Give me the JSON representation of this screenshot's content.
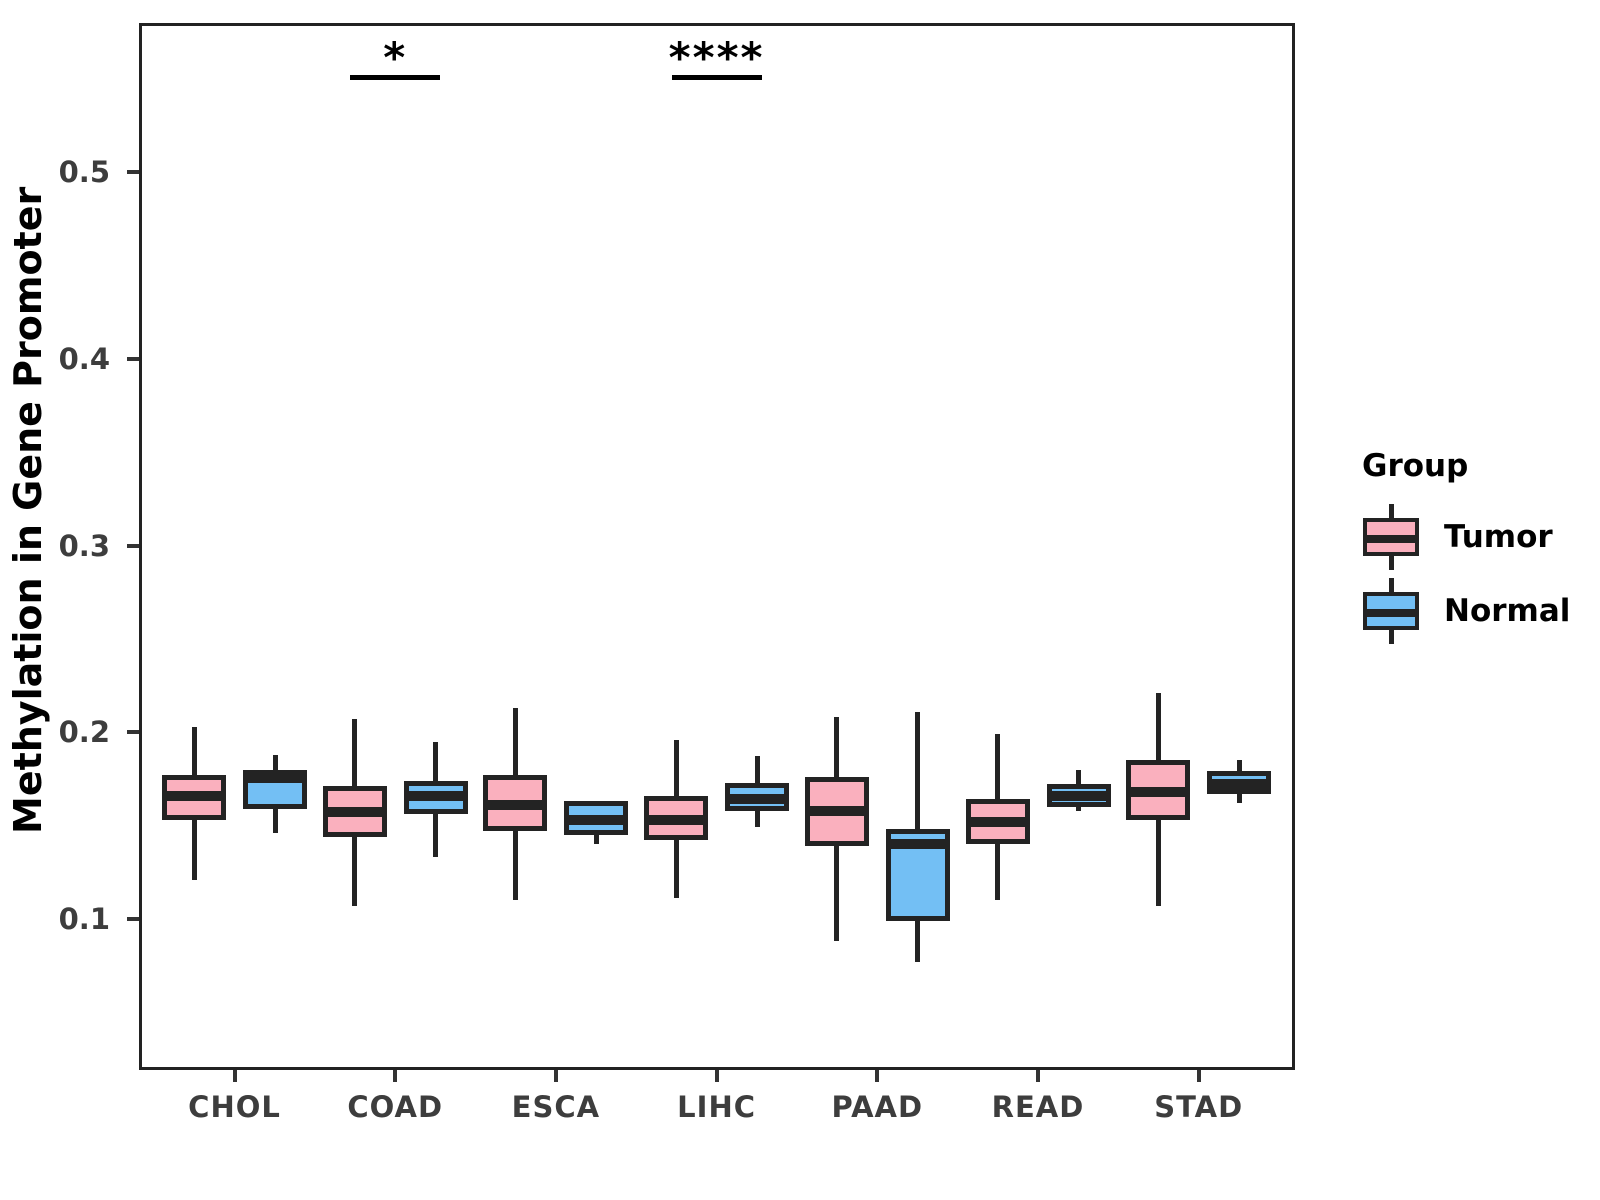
{
  "chart_data": {
    "type": "boxplot",
    "title": "",
    "xlabel": "",
    "ylabel": "Methylation in Gene Promoter",
    "categories": [
      "CHOL",
      "COAD",
      "ESCA",
      "LIHC",
      "PAAD",
      "READ",
      "STAD"
    ],
    "y_ticks": [
      0.1,
      0.2,
      0.3,
      0.4,
      0.5
    ],
    "ylim": [
      0.019,
      0.58
    ],
    "grid": "off",
    "legend": {
      "title": "Group",
      "position": "right",
      "entries": [
        {
          "label": "Tumor",
          "color": "#FAB0BE"
        },
        {
          "label": "Normal",
          "color": "#73BFF4"
        }
      ]
    },
    "series": [
      {
        "name": "Tumor",
        "color": "#FAB0BE",
        "boxes": [
          {
            "category": "CHOL",
            "min": 0.121,
            "q1": 0.153,
            "median": 0.166,
            "q3": 0.177,
            "max": 0.203
          },
          {
            "category": "COAD",
            "min": 0.107,
            "q1": 0.144,
            "median": 0.157,
            "q3": 0.171,
            "max": 0.207
          },
          {
            "category": "ESCA",
            "min": 0.11,
            "q1": 0.147,
            "median": 0.161,
            "q3": 0.177,
            "max": 0.213
          },
          {
            "category": "LIHC",
            "min": 0.111,
            "q1": 0.142,
            "median": 0.153,
            "q3": 0.166,
            "max": 0.196
          },
          {
            "category": "PAAD",
            "min": 0.088,
            "q1": 0.139,
            "median": 0.158,
            "q3": 0.176,
            "max": 0.208
          },
          {
            "category": "READ",
            "min": 0.11,
            "q1": 0.14,
            "median": 0.152,
            "q3": 0.164,
            "max": 0.199
          },
          {
            "category": "STAD",
            "min": 0.107,
            "q1": 0.153,
            "median": 0.168,
            "q3": 0.185,
            "max": 0.221
          }
        ]
      },
      {
        "name": "Normal",
        "color": "#73BFF4",
        "boxes": [
          {
            "category": "CHOL",
            "min": 0.146,
            "q1": 0.159,
            "median": 0.176,
            "q3": 0.18,
            "max": 0.188
          },
          {
            "category": "COAD",
            "min": 0.133,
            "q1": 0.156,
            "median": 0.166,
            "q3": 0.174,
            "max": 0.195
          },
          {
            "category": "ESCA",
            "min": 0.14,
            "q1": 0.145,
            "median": 0.153,
            "q3": 0.163,
            "max": 0.163
          },
          {
            "category": "LIHC",
            "min": 0.149,
            "q1": 0.158,
            "median": 0.164,
            "q3": 0.173,
            "max": 0.187
          },
          {
            "category": "PAAD",
            "min": 0.077,
            "q1": 0.099,
            "median": 0.14,
            "q3": 0.148,
            "max": 0.211
          },
          {
            "category": "READ",
            "min": 0.158,
            "q1": 0.16,
            "median": 0.166,
            "q3": 0.172,
            "max": 0.18
          },
          {
            "category": "STAD",
            "min": 0.162,
            "q1": 0.167,
            "median": 0.172,
            "q3": 0.179,
            "max": 0.185
          }
        ]
      }
    ],
    "annotations": [
      {
        "category": "COAD",
        "label": "*",
        "y": 0.552
      },
      {
        "category": "LIHC",
        "label": "****",
        "y": 0.552
      }
    ]
  }
}
